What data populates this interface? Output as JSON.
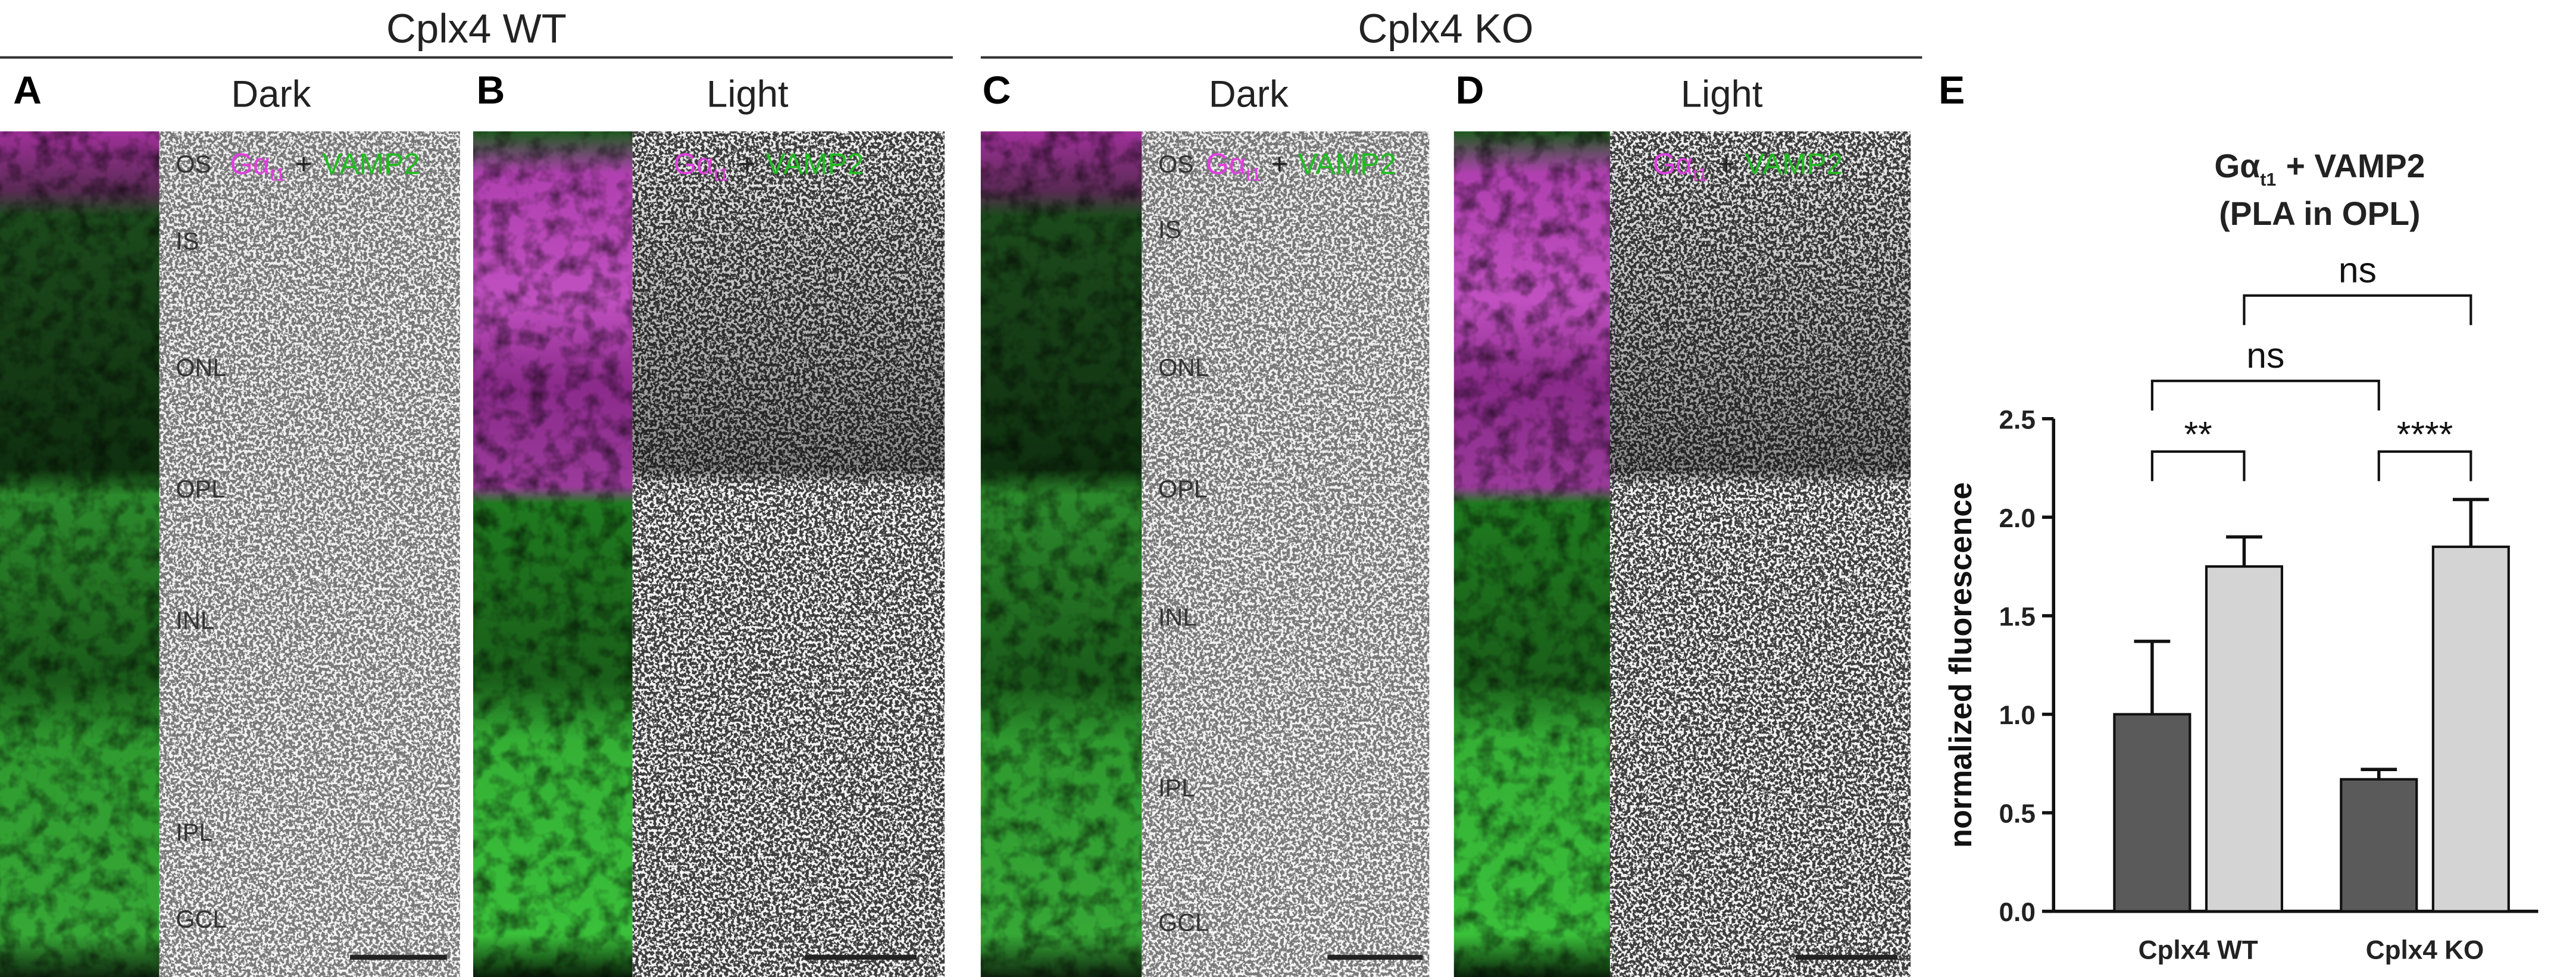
{
  "groups": [
    "Cplx4 WT",
    "Cplx4 KO"
  ],
  "panels": [
    {
      "letter": "A",
      "condition": "Dark",
      "stain": {
        "target": "Gα",
        "subscript": "t1",
        "plus": "+",
        "partner": "VAMP2"
      },
      "layers": [
        "OS",
        "IS",
        "ONL",
        "OPL",
        "INL",
        "IPL",
        "GCL"
      ]
    },
    {
      "letter": "B",
      "condition": "Light",
      "stain": {
        "target": "Gα",
        "subscript": "t1",
        "plus": "+",
        "partner": "VAMP2"
      }
    },
    {
      "letter": "C",
      "condition": "Dark",
      "stain": {
        "target": "Gα",
        "subscript": "t1",
        "plus": "+",
        "partner": "VAMP2"
      },
      "layers": [
        "OS",
        "IS",
        "ONL",
        "OPL",
        "INL",
        "IPL",
        "GCL"
      ]
    },
    {
      "letter": "D",
      "condition": "Light",
      "stain": {
        "target": "Gα",
        "subscript": "t1",
        "plus": "+",
        "partner": "VAMP2"
      }
    }
  ],
  "chart_letter": "E",
  "chart_data": {
    "type": "bar",
    "title": "Gα",
    "title_subscript": "t1",
    "title_rest": "+ VAMP2",
    "subtitle": "(PLA in OPL)",
    "ylabel": "normalized fluorescence",
    "categories": [
      "Cplx4 WT",
      "Cplx4 KO"
    ],
    "series": [
      {
        "color": "#5a5a5a",
        "values": [
          1.0,
          0.67
        ],
        "errors": [
          0.37,
          0.05
        ]
      },
      {
        "color": "#d4d4d4",
        "values": [
          1.75,
          1.85
        ],
        "errors": [
          0.15,
          0.24
        ]
      }
    ],
    "ylim": [
      0,
      2.5
    ],
    "yticks": [
      {
        "value": 0,
        "label": "0.0"
      },
      0.5,
      {
        "value": 1,
        "label": "1.0"
      },
      1.5,
      {
        "value": 2,
        "label": "2.0"
      },
      2.5
    ],
    "annotations": [
      "**",
      "****",
      "ns",
      "ns"
    ]
  }
}
